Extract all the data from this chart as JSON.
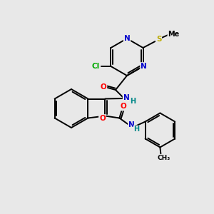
{
  "bg_color": "#e8e8e8",
  "bond_color": "#000000",
  "atom_colors": {
    "N": "#0000cc",
    "O": "#ff0000",
    "S": "#bbaa00",
    "Cl": "#00aa00",
    "H": "#008888",
    "C": "#000000"
  }
}
